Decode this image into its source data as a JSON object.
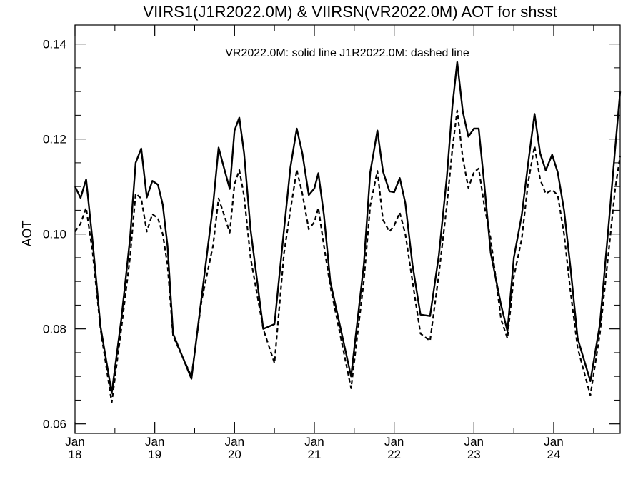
{
  "chart_data": {
    "type": "line",
    "title": "VIIRS1(J1R2022.0M) & VIIRSN(VR2022.0M)  AOT for shsst",
    "annotation": "VR2022.0M: solid line   J1R2022.0M: dashed line",
    "xlabel": "",
    "ylabel": "AOT",
    "ylim": [
      0.058,
      0.144
    ],
    "yticks": [
      "0.06",
      "0.08",
      "0.10",
      "0.12",
      "0.14"
    ],
    "xlim": [
      2018.0,
      2024.833
    ],
    "xticks": [
      {
        "value": 2018,
        "month": "Jan",
        "year": "18"
      },
      {
        "value": 2019,
        "month": "Jan",
        "year": "19"
      },
      {
        "value": 2020,
        "month": "Jan",
        "year": "20"
      },
      {
        "value": 2021,
        "month": "Jan",
        "year": "21"
      },
      {
        "value": 2022,
        "month": "Jan",
        "year": "22"
      },
      {
        "value": 2023,
        "month": "Jan",
        "year": "23"
      },
      {
        "value": 2024,
        "month": "Jan",
        "year": "24"
      }
    ],
    "grid": false,
    "colors": {
      "line": "#000000",
      "background": "#ffffff"
    },
    "series": [
      {
        "name": "VR2022.0M",
        "style": "solid",
        "points": [
          [
            2018.0,
            0.11
          ],
          [
            2018.07,
            0.1076
          ],
          [
            2018.14,
            0.1115
          ],
          [
            2018.22,
            0.0985
          ],
          [
            2018.32,
            0.0805
          ],
          [
            2018.46,
            0.0665
          ],
          [
            2018.58,
            0.082
          ],
          [
            2018.69,
            0.099
          ],
          [
            2018.76,
            0.115
          ],
          [
            2018.83,
            0.118
          ],
          [
            2018.9,
            0.1077
          ],
          [
            2018.97,
            0.1112
          ],
          [
            2019.04,
            0.1104
          ],
          [
            2019.1,
            0.1062
          ],
          [
            2019.16,
            0.0975
          ],
          [
            2019.23,
            0.079
          ],
          [
            2019.46,
            0.0695
          ],
          [
            2019.59,
            0.087
          ],
          [
            2019.73,
            0.106
          ],
          [
            2019.8,
            0.1182
          ],
          [
            2019.86,
            0.1144
          ],
          [
            2019.94,
            0.1095
          ],
          [
            2020.0,
            0.1218
          ],
          [
            2020.06,
            0.1245
          ],
          [
            2020.12,
            0.117
          ],
          [
            2020.2,
            0.101
          ],
          [
            2020.36,
            0.08
          ],
          [
            2020.5,
            0.081
          ],
          [
            2020.62,
            0.101
          ],
          [
            2020.7,
            0.114
          ],
          [
            2020.78,
            0.1222
          ],
          [
            2020.85,
            0.117
          ],
          [
            2020.93,
            0.1082
          ],
          [
            2021.0,
            0.1096
          ],
          [
            2021.05,
            0.1128
          ],
          [
            2021.12,
            0.104
          ],
          [
            2021.2,
            0.09
          ],
          [
            2021.46,
            0.07
          ],
          [
            2021.62,
            0.0935
          ],
          [
            2021.7,
            0.113
          ],
          [
            2021.79,
            0.1218
          ],
          [
            2021.86,
            0.1132
          ],
          [
            2021.94,
            0.109
          ],
          [
            2022.0,
            0.1088
          ],
          [
            2022.07,
            0.1118
          ],
          [
            2022.14,
            0.1065
          ],
          [
            2022.23,
            0.0935
          ],
          [
            2022.33,
            0.083
          ],
          [
            2022.45,
            0.0827
          ],
          [
            2022.56,
            0.0955
          ],
          [
            2022.66,
            0.112
          ],
          [
            2022.73,
            0.127
          ],
          [
            2022.79,
            0.1362
          ],
          [
            2022.86,
            0.1258
          ],
          [
            2022.93,
            0.1205
          ],
          [
            2023.0,
            0.1222
          ],
          [
            2023.06,
            0.1222
          ],
          [
            2023.13,
            0.1105
          ],
          [
            2023.21,
            0.096
          ],
          [
            2023.34,
            0.085
          ],
          [
            2023.42,
            0.0795
          ],
          [
            2023.5,
            0.095
          ],
          [
            2023.6,
            0.104
          ],
          [
            2023.68,
            0.115
          ],
          [
            2023.76,
            0.1253
          ],
          [
            2023.83,
            0.117
          ],
          [
            2023.9,
            0.1134
          ],
          [
            2023.98,
            0.1167
          ],
          [
            2024.05,
            0.113
          ],
          [
            2024.13,
            0.105
          ],
          [
            2024.21,
            0.093
          ],
          [
            2024.3,
            0.078
          ],
          [
            2024.46,
            0.069
          ],
          [
            2024.58,
            0.081
          ],
          [
            2024.7,
            0.104
          ],
          [
            2024.77,
            0.118
          ],
          [
            2024.833,
            0.13
          ]
        ]
      },
      {
        "name": "J1R2022.0M",
        "style": "dashed",
        "points": [
          [
            2018.0,
            0.1005
          ],
          [
            2018.07,
            0.1022
          ],
          [
            2018.14,
            0.1055
          ],
          [
            2018.22,
            0.0962
          ],
          [
            2018.32,
            0.08
          ],
          [
            2018.46,
            0.0645
          ],
          [
            2018.58,
            0.08
          ],
          [
            2018.69,
            0.095
          ],
          [
            2018.76,
            0.1085
          ],
          [
            2018.83,
            0.1075
          ],
          [
            2018.9,
            0.1005
          ],
          [
            2018.97,
            0.1042
          ],
          [
            2019.04,
            0.1033
          ],
          [
            2019.1,
            0.1
          ],
          [
            2019.16,
            0.0935
          ],
          [
            2019.23,
            0.0785
          ],
          [
            2019.46,
            0.07
          ],
          [
            2019.59,
            0.0862
          ],
          [
            2019.73,
            0.0975
          ],
          [
            2019.8,
            0.1075
          ],
          [
            2019.86,
            0.1045
          ],
          [
            2019.94,
            0.1003
          ],
          [
            2020.0,
            0.1105
          ],
          [
            2020.06,
            0.1135
          ],
          [
            2020.12,
            0.108
          ],
          [
            2020.2,
            0.095
          ],
          [
            2020.36,
            0.08
          ],
          [
            2020.5,
            0.0728
          ],
          [
            2020.62,
            0.096
          ],
          [
            2020.7,
            0.105
          ],
          [
            2020.78,
            0.1135
          ],
          [
            2020.85,
            0.1085
          ],
          [
            2020.93,
            0.101
          ],
          [
            2021.0,
            0.1025
          ],
          [
            2021.05,
            0.1055
          ],
          [
            2021.12,
            0.0975
          ],
          [
            2021.2,
            0.089
          ],
          [
            2021.46,
            0.0675
          ],
          [
            2021.62,
            0.09
          ],
          [
            2021.7,
            0.106
          ],
          [
            2021.79,
            0.1133
          ],
          [
            2021.86,
            0.103
          ],
          [
            2021.94,
            0.1005
          ],
          [
            2022.0,
            0.1018
          ],
          [
            2022.07,
            0.1045
          ],
          [
            2022.14,
            0.1
          ],
          [
            2022.23,
            0.09
          ],
          [
            2022.33,
            0.079
          ],
          [
            2022.45,
            0.0775
          ],
          [
            2022.56,
            0.0915
          ],
          [
            2022.66,
            0.106
          ],
          [
            2022.73,
            0.118
          ],
          [
            2022.79,
            0.126
          ],
          [
            2022.86,
            0.116
          ],
          [
            2022.93,
            0.1097
          ],
          [
            2023.0,
            0.113
          ],
          [
            2023.06,
            0.1138
          ],
          [
            2023.13,
            0.106
          ],
          [
            2023.21,
            0.099
          ],
          [
            2023.34,
            0.082
          ],
          [
            2023.42,
            0.078
          ],
          [
            2023.5,
            0.091
          ],
          [
            2023.6,
            0.099
          ],
          [
            2023.68,
            0.111
          ],
          [
            2023.76,
            0.1185
          ],
          [
            2023.83,
            0.1115
          ],
          [
            2023.9,
            0.1085
          ],
          [
            2023.98,
            0.1093
          ],
          [
            2024.05,
            0.1082
          ],
          [
            2024.13,
            0.1
          ],
          [
            2024.21,
            0.088
          ],
          [
            2024.3,
            0.076
          ],
          [
            2024.46,
            0.066
          ],
          [
            2024.58,
            0.079
          ],
          [
            2024.7,
            0.098
          ],
          [
            2024.77,
            0.1095
          ],
          [
            2024.833,
            0.1165
          ]
        ]
      }
    ]
  }
}
